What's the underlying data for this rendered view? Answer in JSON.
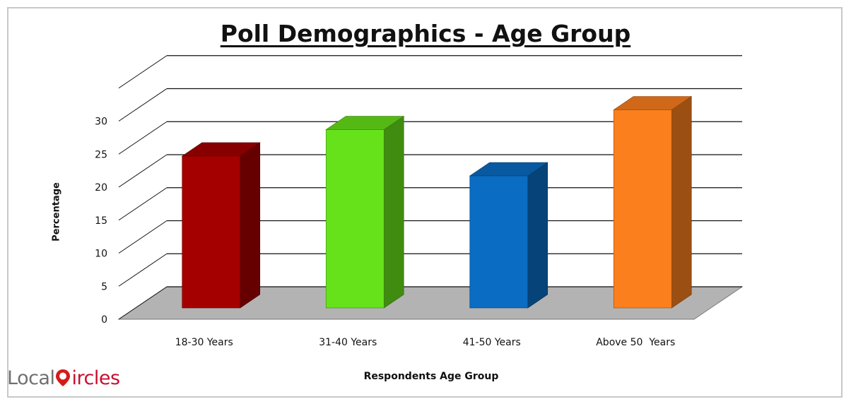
{
  "chart_data": {
    "type": "bar",
    "title": "Poll Demographics - Age Group",
    "xlabel": "Respondents Age Group",
    "ylabel": "Percentage",
    "categories": [
      "18-30 Years",
      "31-40 Years",
      "41-50 Years",
      "Above 50  Years"
    ],
    "values": [
      23,
      27,
      20,
      30
    ],
    "ylim": [
      0,
      30
    ],
    "yticks": [
      "0",
      "5",
      "10",
      "15",
      "20",
      "25",
      "30"
    ],
    "grid": true,
    "legend": "none",
    "colors": [
      "#a50000",
      "#66e21a",
      "#0a6cc2",
      "#fc7f1d"
    ]
  },
  "logo": {
    "part1": "Local",
    "part2": "ircles"
  }
}
